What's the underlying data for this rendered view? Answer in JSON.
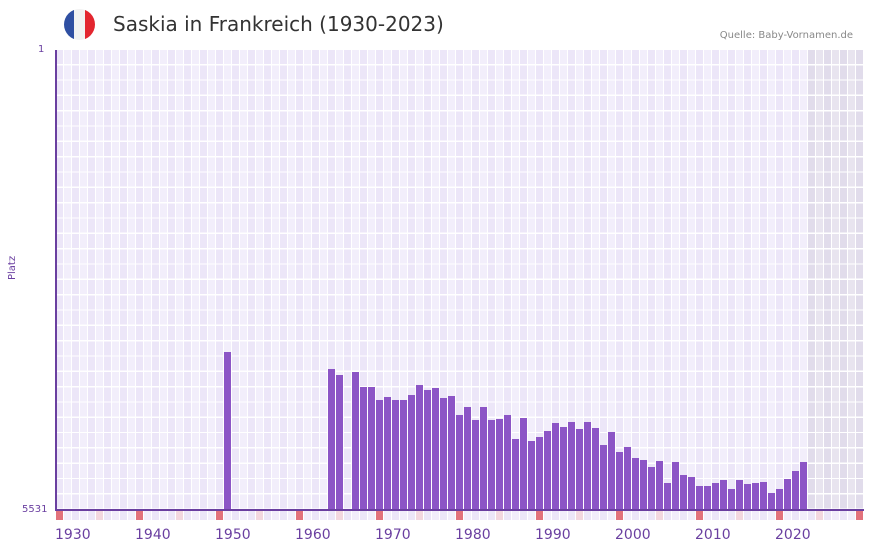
{
  "header": {
    "title": "Saskia in Frankreich (1930-2023)",
    "source": "Quelle: Baby-Vornamen.de",
    "flag_colors": [
      "#2f4fa2",
      "#f2f2f2",
      "#e3262f"
    ]
  },
  "colors": {
    "bar": "#8c55c6",
    "axis": "#6a3fa0",
    "col_light": "#f2eefb",
    "col_dark": "#ece6f8",
    "shade_light": "#e8e4ef",
    "shade_dark": "#e1dceb",
    "marker_red": "#e2727c",
    "marker_pink": "#f3d7df"
  },
  "chart_data": {
    "type": "bar",
    "title": "Saskia in Frankreich (1930-2023)",
    "xlabel": "",
    "ylabel": "Platz",
    "y_inverted": true,
    "ylim": [
      5531,
      1
    ],
    "yticks": [
      "1",
      "5531"
    ],
    "xticks": [
      "1930",
      "1940",
      "1950",
      "1960",
      "1970",
      "1980",
      "1990",
      "2000",
      "2010",
      "2020"
    ],
    "x_range": [
      1929,
      2029
    ],
    "shaded_from": 2023,
    "grid": true,
    "legend": null,
    "x": [
      1950,
      1963,
      1964,
      1966,
      1967,
      1968,
      1969,
      1970,
      1971,
      1972,
      1973,
      1974,
      1975,
      1976,
      1977,
      1978,
      1979,
      1980,
      1981,
      1982,
      1983,
      1984,
      1985,
      1986,
      1987,
      1988,
      1989,
      1990,
      1991,
      1992,
      1993,
      1994,
      1995,
      1996,
      1997,
      1998,
      1999,
      2000,
      2001,
      2002,
      2003,
      2004,
      2005,
      2006,
      2007,
      2008,
      2009,
      2010,
      2011,
      2012,
      2013,
      2014,
      2015,
      2016,
      2017,
      2018,
      2019,
      2020,
      2021,
      2022
    ],
    "values": [
      3626,
      3831,
      3903,
      3867,
      4047,
      4047,
      4203,
      4167,
      4203,
      4203,
      4143,
      4023,
      4083,
      4059,
      4179,
      4155,
      4383,
      4287,
      4455,
      4287,
      4455,
      4443,
      4383,
      4672,
      4431,
      4696,
      4648,
      4576,
      4480,
      4528,
      4468,
      4552,
      4468,
      4540,
      4744,
      4588,
      4829,
      4768,
      4900,
      4925,
      5009,
      4937,
      5202,
      4949,
      5105,
      5129,
      5238,
      5238,
      5202,
      5166,
      5274,
      5166,
      5214,
      5202,
      5190,
      5322,
      5274,
      5154,
      5057,
      4949
    ]
  }
}
